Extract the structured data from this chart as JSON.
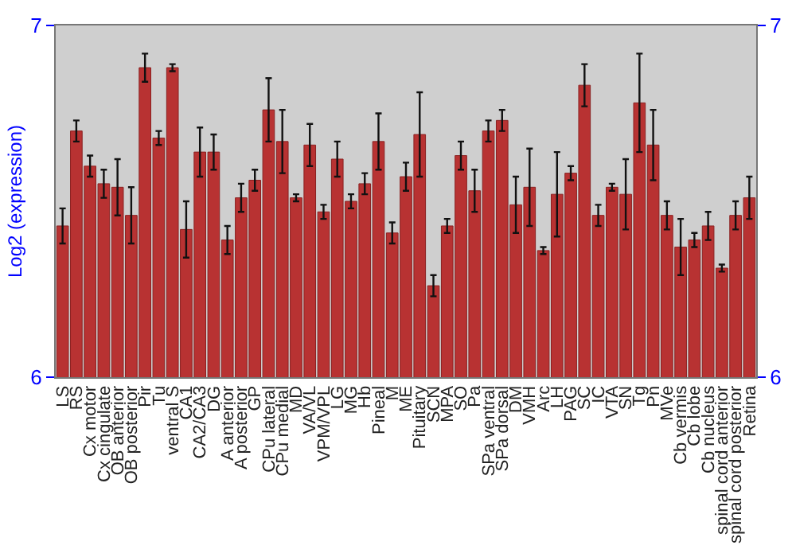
{
  "chart_data": {
    "type": "bar",
    "ylabel": "Log2 (expression)",
    "categories": [
      "LS",
      "RS",
      "Cx motor",
      "Cx cingulate",
      "OB anterior",
      "OB posterior",
      "Pir",
      "Tu",
      "ventral S",
      "CA1",
      "CA2/CA3",
      "DG",
      "A anterior",
      "A posterior",
      "GP",
      "CPu lateral",
      "CPu medial",
      "MD",
      "VA/VL",
      "VPM/VPL",
      "LG",
      "MG",
      "Hb",
      "Pineal",
      "M",
      "ME",
      "Pituitary",
      "SCN",
      "MPA",
      "SO",
      "Pa",
      "SPa ventral",
      "SPa dorsal",
      "DM",
      "VMH",
      "Arc",
      "LH",
      "PAG",
      "SC",
      "IC",
      "VTA",
      "SN",
      "Tg",
      "Pn",
      "MVe",
      "Cb vermis",
      "Cb lobe",
      "Cb nucleus",
      "spinal cord anterior",
      "spinal cord posterior",
      "Retina"
    ],
    "values": [
      6.43,
      6.7,
      6.6,
      6.55,
      6.54,
      6.46,
      6.88,
      6.68,
      6.88,
      6.42,
      6.64,
      6.64,
      6.39,
      6.51,
      6.56,
      6.76,
      6.67,
      6.51,
      6.66,
      6.47,
      6.62,
      6.5,
      6.55,
      6.67,
      6.41,
      6.57,
      6.69,
      6.26,
      6.43,
      6.63,
      6.53,
      6.7,
      6.73,
      6.49,
      6.54,
      6.36,
      6.52,
      6.58,
      6.83,
      6.46,
      6.54,
      6.52,
      6.78,
      6.66,
      6.46,
      6.37,
      6.39,
      6.43,
      6.31,
      6.46,
      6.51
    ],
    "errors": [
      0.05,
      0.03,
      0.03,
      0.04,
      0.08,
      0.08,
      0.04,
      0.02,
      0.01,
      0.08,
      0.07,
      0.05,
      0.04,
      0.04,
      0.03,
      0.09,
      0.09,
      0.01,
      0.06,
      0.02,
      0.05,
      0.02,
      0.03,
      0.08,
      0.03,
      0.04,
      0.12,
      0.03,
      0.02,
      0.04,
      0.06,
      0.03,
      0.03,
      0.08,
      0.11,
      0.01,
      0.12,
      0.02,
      0.06,
      0.03,
      0.01,
      0.1,
      0.14,
      0.1,
      0.04,
      0.08,
      0.02,
      0.04,
      0.01,
      0.04,
      0.06
    ],
    "color": "#b83232",
    "ylim": [
      6,
      7
    ],
    "yticks": [
      6,
      7
    ],
    "y2lim": [
      6,
      7
    ],
    "y2ticks": [
      6,
      7
    ],
    "grid": false
  }
}
